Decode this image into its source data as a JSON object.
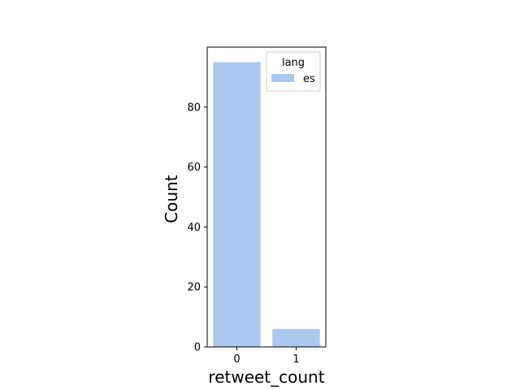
{
  "chart_data": {
    "type": "bar",
    "categories": [
      "0",
      "1"
    ],
    "series": [
      {
        "name": "es",
        "values": [
          95,
          6
        ],
        "color": "#abc9ee"
      }
    ],
    "xlabel": "retweet_count",
    "ylabel": "Count",
    "ylim": [
      0,
      100
    ],
    "yticks": [
      0,
      20,
      40,
      60,
      80
    ],
    "grid": false,
    "legend": {
      "title": "lang",
      "placement": "top-right"
    }
  }
}
